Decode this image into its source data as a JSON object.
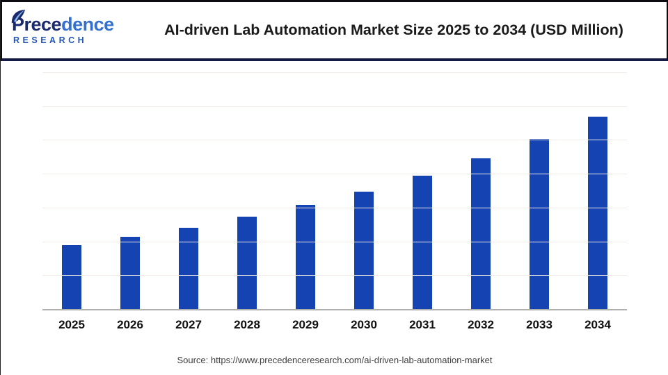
{
  "brand": {
    "name_part1": "Prece",
    "name_part2": "dence",
    "name_line2": "RESEARCH"
  },
  "header": {
    "title": "AI-driven Lab Automation Market Size 2025 to 2034 (USD Million)"
  },
  "footer": {
    "source": "Source: https://www.precedenceresearch.com/ai-driven-lab-automation-market"
  },
  "colors": {
    "bar": "#1544B2",
    "header_rule": "#151A45",
    "header_frame": "#0B0B10",
    "gridline": "#F1ECE7",
    "axis_line": "#AFAFAF",
    "title_text": "#1A1A1A",
    "logo_navy": "#1B2A6E",
    "logo_blue": "#3470CE"
  },
  "chart_data": {
    "type": "bar",
    "title": "AI-driven Lab Automation Market Size 2025 to 2034 (USD Million)",
    "unit": "USD Million",
    "categories": [
      "2025",
      "2026",
      "2027",
      "2028",
      "2029",
      "2030",
      "2031",
      "2032",
      "2033",
      "2034"
    ],
    "values": [
      3060,
      3460,
      3910,
      4430,
      5010,
      5660,
      6400,
      7240,
      8190,
      9250
    ],
    "xlabel": "",
    "ylabel": "",
    "y_axis_labels_visible": false,
    "data_labels_visible": false,
    "gridlines": "horizontal",
    "gridline_count": 7,
    "legend": "none",
    "bar_color": "#1544B2"
  }
}
